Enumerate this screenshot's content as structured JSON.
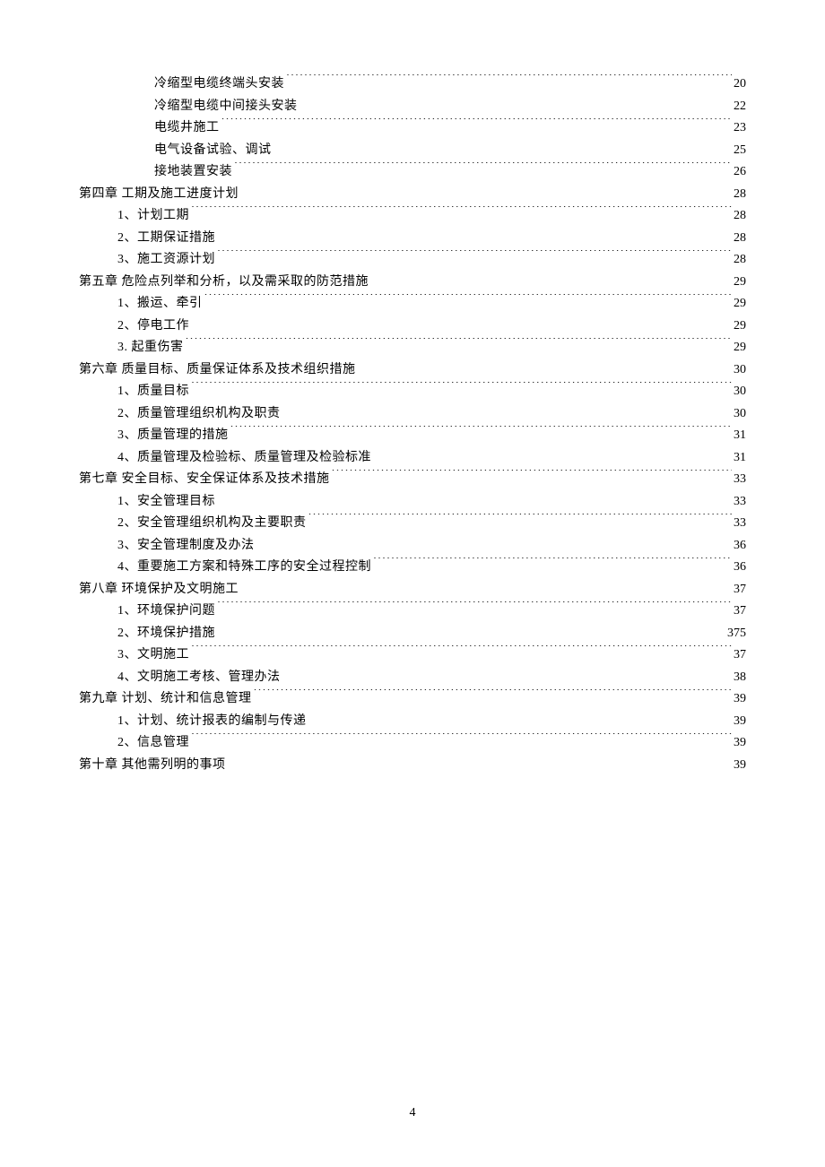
{
  "page_number": "4",
  "font_size_pt": 10.5,
  "text_color": "#000000",
  "background_color": "#ffffff",
  "entries": [
    {
      "indent": 2,
      "label": "冷缩型电缆终端头安装",
      "page": "20"
    },
    {
      "indent": 2,
      "label": "冷缩型电缆中间接头安装",
      "page": "22"
    },
    {
      "indent": 2,
      "label": "电缆井施工",
      "page": "23"
    },
    {
      "indent": 2,
      "label": "电气设备试验、调试",
      "page": "25"
    },
    {
      "indent": 2,
      "label": "接地装置安装",
      "page": "26"
    },
    {
      "indent": 0,
      "label": "第四章  工期及施工进度计划",
      "page": "28"
    },
    {
      "indent": 1,
      "label": "1、计划工期",
      "page": "28"
    },
    {
      "indent": 1,
      "label": "2、工期保证措施",
      "page": "28"
    },
    {
      "indent": 1,
      "label": "3、施工资源计划",
      "page": "28"
    },
    {
      "indent": 0,
      "label": "第五章   危险点列举和分析，以及需采取的防范措施",
      "page": "29"
    },
    {
      "indent": 1,
      "label": "1、搬运、牵引",
      "page": "29"
    },
    {
      "indent": 1,
      "label": "2、停电工作",
      "page": "29"
    },
    {
      "indent": 1,
      "label": "3.  起重伤害",
      "page": "29"
    },
    {
      "indent": 0,
      "label": "第六章   质量目标、质量保证体系及技术组织措施",
      "page": "30"
    },
    {
      "indent": 1,
      "label": "1、质量目标",
      "page": "30"
    },
    {
      "indent": 1,
      "label": "2、质量管理组织机构及职责",
      "page": "30"
    },
    {
      "indent": 1,
      "label": "3、质量管理的措施",
      "page": "31"
    },
    {
      "indent": 1,
      "label": "4、质量管理及检验标、质量管理及检验标准",
      "page": "31"
    },
    {
      "indent": 0,
      "label": "第七章   安全目标、安全保证体系及技术措施",
      "page": "33"
    },
    {
      "indent": 1,
      "label": "1、安全管理目标",
      "page": "33"
    },
    {
      "indent": 1,
      "label": "2、安全管理组织机构及主要职责",
      "page": "33"
    },
    {
      "indent": 1,
      "label": "3、安全管理制度及办法",
      "page": "36"
    },
    {
      "indent": 1,
      "label": "4、重要施工方案和特殊工序的安全过程控制",
      "page": "36"
    },
    {
      "indent": 0,
      "label": "第八章   环境保护及文明施工",
      "page": "37"
    },
    {
      "indent": 1,
      "label": "1、环境保护问题",
      "page": "37"
    },
    {
      "indent": 1,
      "label": "2、环境保护措施",
      "page": "375"
    },
    {
      "indent": 1,
      "label": "3、文明施工",
      "page": "37"
    },
    {
      "indent": 1,
      "label": "4、文明施工考核、管理办法",
      "page": "38"
    },
    {
      "indent": 0,
      "label": "第九章  计划、统计和信息管理",
      "page": "39"
    },
    {
      "indent": 1,
      "label": "1、计划、统计报表的编制与传递",
      "page": "39"
    },
    {
      "indent": 1,
      "label": "2、信息管理",
      "page": "39"
    },
    {
      "indent": 0,
      "label": "第十章  其他需列明的事项",
      "page": "39"
    }
  ]
}
